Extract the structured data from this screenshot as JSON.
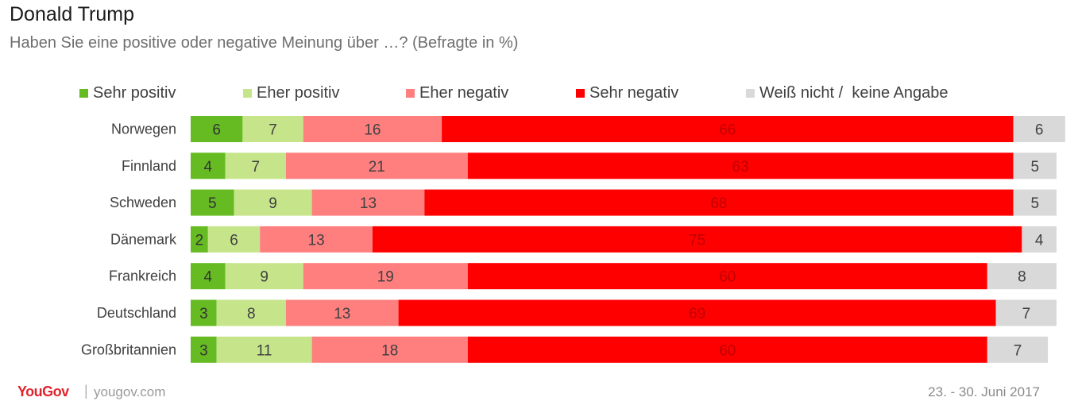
{
  "header": {
    "title": "Donald Trump",
    "subtitle": "Haben Sie eine positive oder negative Meinung über …? (Befragte in %)"
  },
  "footer": {
    "logo": "YouGov",
    "separator": "|",
    "url": "yougov.com",
    "date": "23. - 30. Juni 2017"
  },
  "chart_data": {
    "type": "bar",
    "orientation": "horizontal",
    "stacked": true,
    "categories": [
      "Norwegen",
      "Finnland",
      "Schweden",
      "Dänemark",
      "Frankreich",
      "Deutschland",
      "Großbritannien"
    ],
    "series": [
      {
        "name": "Sehr positiv",
        "color": "#66bb22",
        "values": [
          6,
          4,
          5,
          2,
          4,
          3,
          3
        ]
      },
      {
        "name": "Eher positiv",
        "color": "#c6e58b",
        "values": [
          7,
          7,
          9,
          6,
          9,
          8,
          11
        ]
      },
      {
        "name": "Eher negativ",
        "color": "#ff7f7f",
        "values": [
          16,
          21,
          13,
          13,
          19,
          13,
          18
        ]
      },
      {
        "name": "Sehr negativ",
        "color": "#ff0000",
        "values": [
          66,
          63,
          68,
          75,
          60,
          69,
          60
        ]
      },
      {
        "name": "Weiß nicht /  keine Angabe",
        "color": "#d9d9d9",
        "values": [
          6,
          5,
          5,
          4,
          8,
          7,
          7
        ]
      }
    ],
    "legend_position": "top",
    "grid": false,
    "axis": "hidden"
  }
}
